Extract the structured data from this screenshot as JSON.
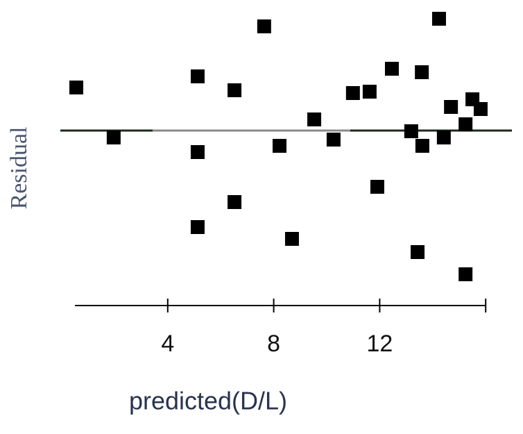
{
  "chart_data": {
    "type": "scatter",
    "x_label": "predicted(D/L)",
    "y_label": "Residual",
    "xlim": [
      0.5,
      16
    ],
    "ylim": [
      -5,
      3.5
    ],
    "xticks": [
      4,
      8,
      12
    ],
    "reference_line": 0,
    "marker_color": "#000000",
    "series": [
      {
        "name": "residuals",
        "color": "#000000",
        "x": [
          0.55,
          1.96,
          5.13,
          5.13,
          5.13,
          6.52,
          6.52,
          7.64,
          8.22,
          8.69,
          9.53,
          10.26,
          10.99,
          11.62,
          11.91,
          12.46,
          13.19,
          13.43,
          13.59,
          13.61,
          14.24,
          14.42,
          14.69,
          15.24,
          15.24,
          15.5,
          15.81
        ],
        "values": [
          1.24,
          -0.2,
          1.56,
          -0.62,
          -2.78,
          1.16,
          -2.06,
          3.0,
          -0.44,
          -3.12,
          0.32,
          -0.26,
          1.08,
          1.12,
          -1.62,
          1.78,
          -0.02,
          -3.5,
          1.68,
          -0.44,
          3.22,
          -0.2,
          0.68,
          0.18,
          -4.14,
          0.9,
          0.62
        ]
      }
    ]
  }
}
